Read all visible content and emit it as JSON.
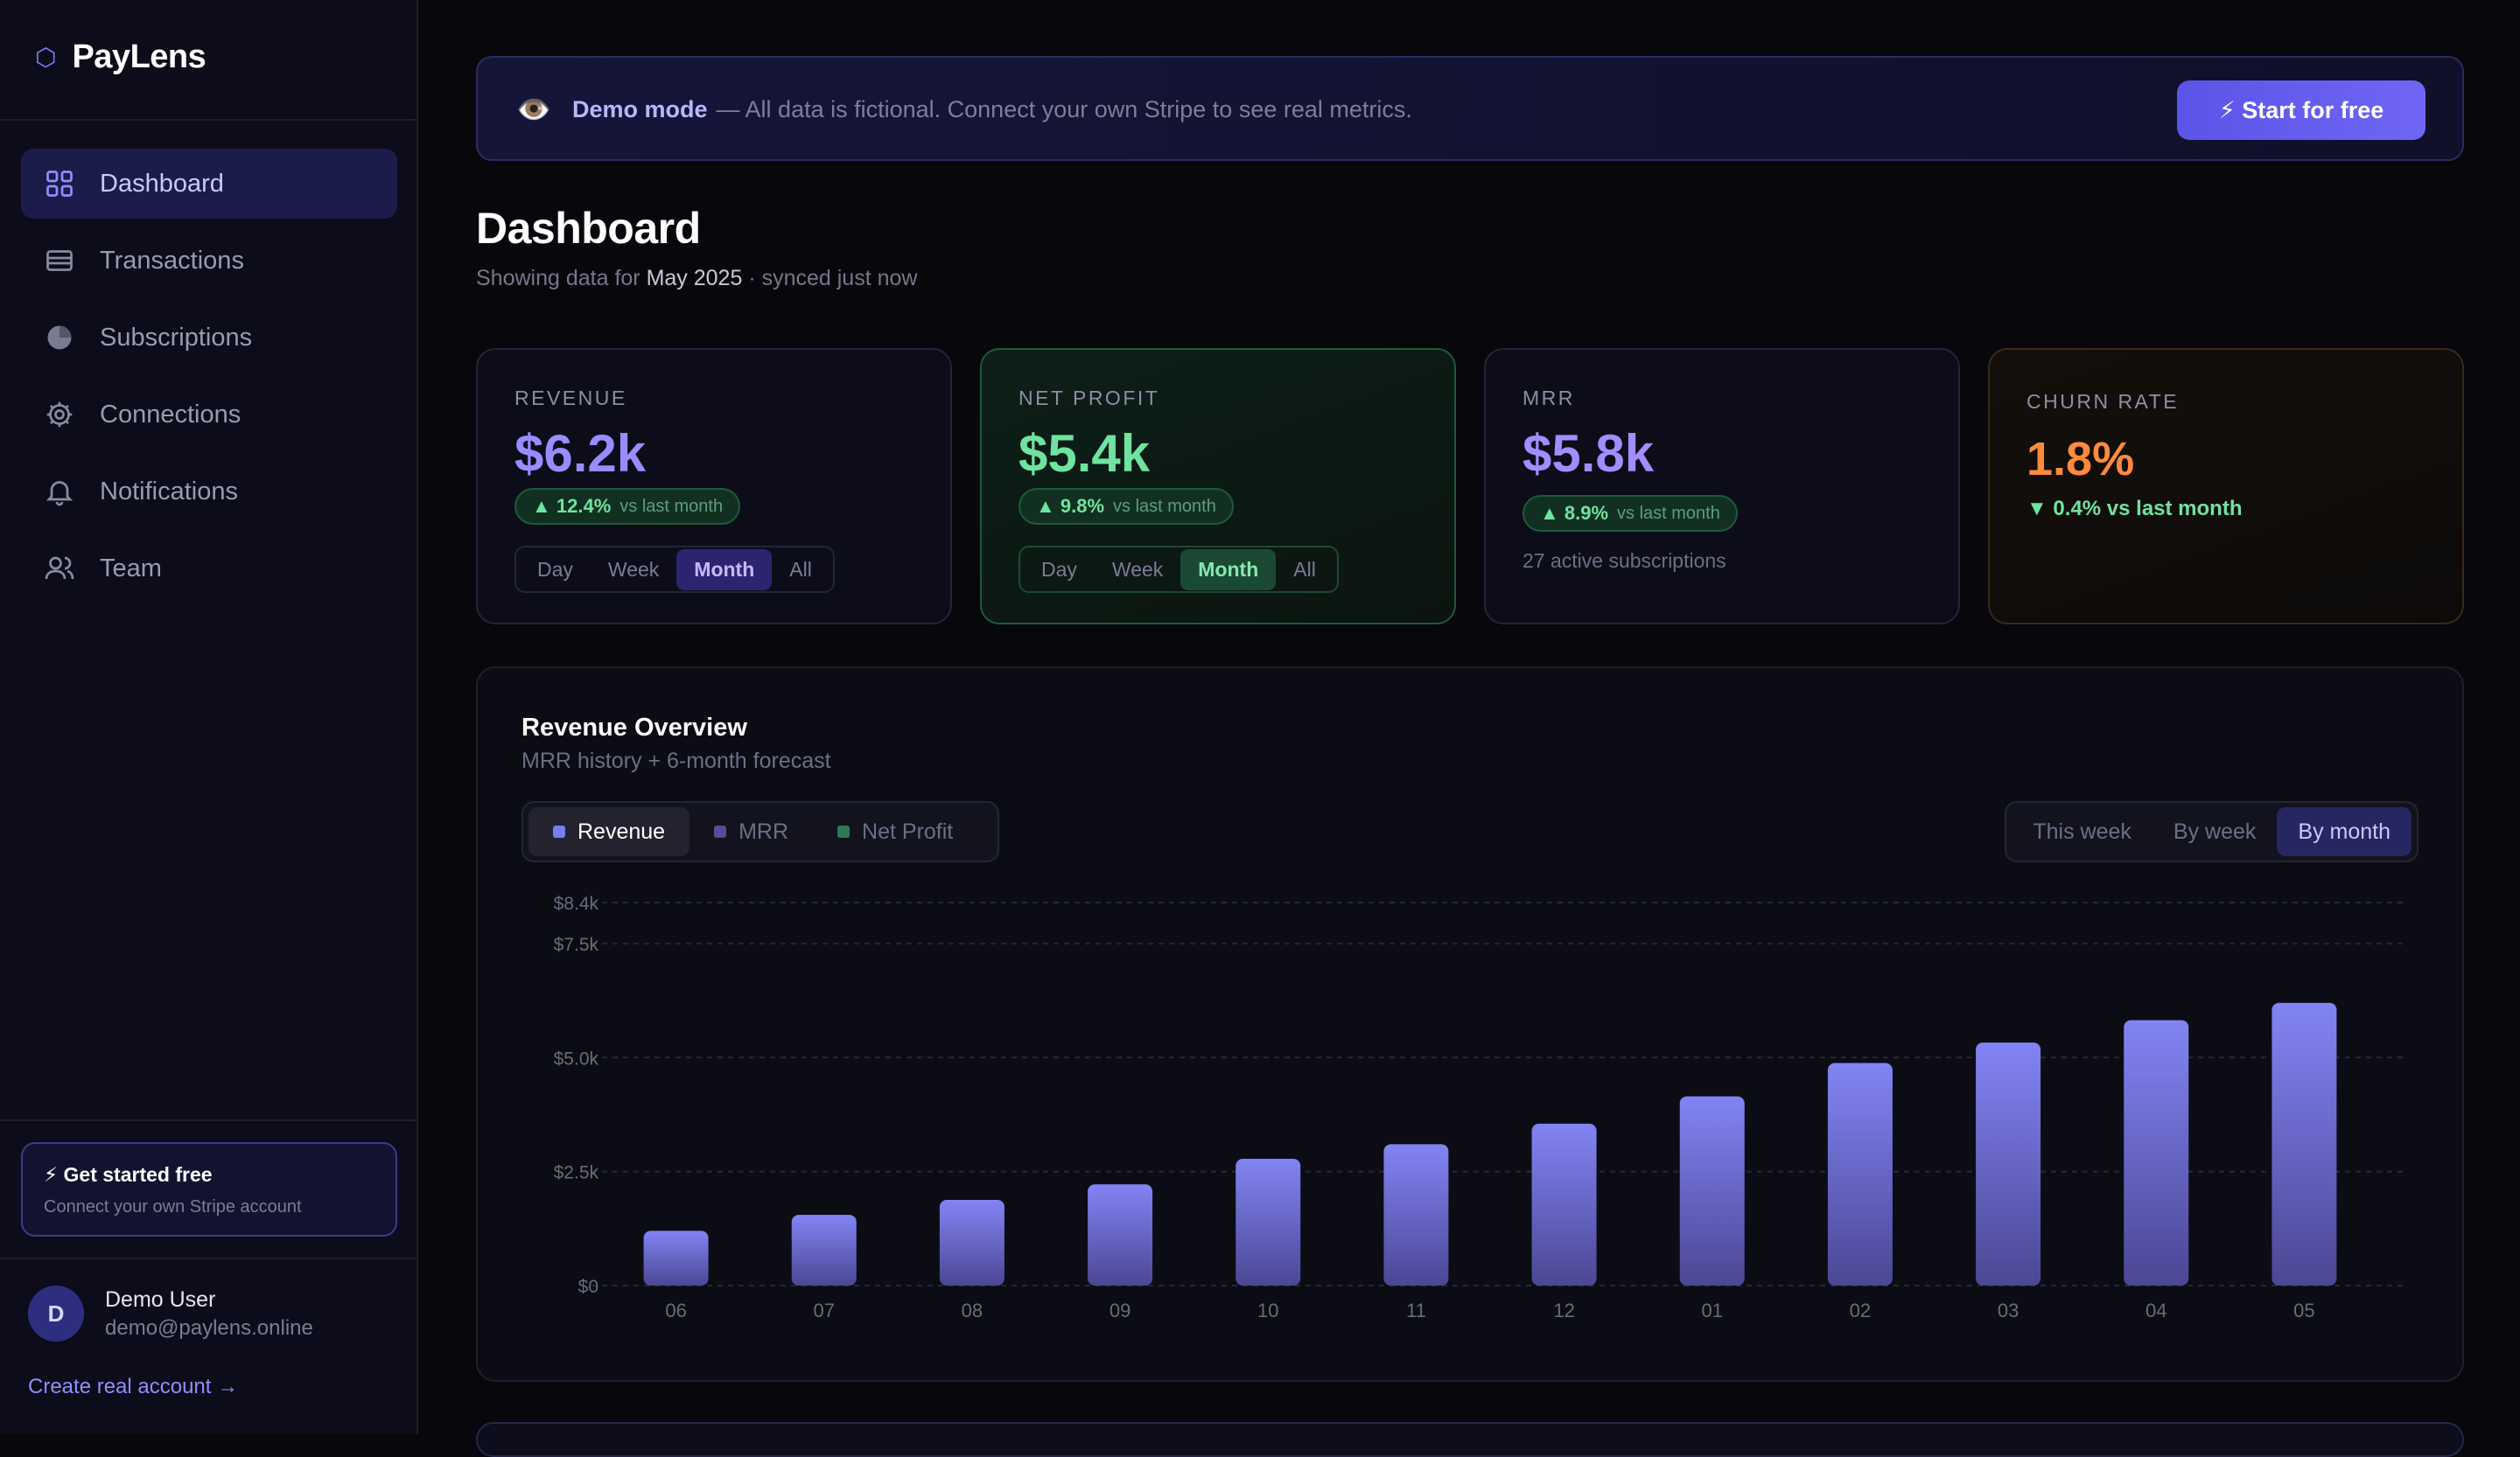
{
  "app": {
    "name": "PayLens",
    "logo_glyph": "⬡"
  },
  "sidebar": {
    "items": [
      {
        "label": "Dashboard",
        "icon": "grid-icon",
        "active": true
      },
      {
        "label": "Transactions",
        "icon": "card-icon",
        "active": false
      },
      {
        "label": "Subscriptions",
        "icon": "pie-icon",
        "active": false
      },
      {
        "label": "Connections",
        "icon": "gear-icon",
        "active": false
      },
      {
        "label": "Notifications",
        "icon": "bell-icon",
        "active": false
      },
      {
        "label": "Team",
        "icon": "users-icon",
        "active": false
      }
    ],
    "promo": {
      "title": "⚡ Get started free",
      "subtitle": "Connect your own Stripe account"
    },
    "user": {
      "initial": "D",
      "name": "Demo User",
      "email": "demo@paylens.online"
    },
    "create_link": "Create real account →"
  },
  "banner": {
    "icon": "👁️",
    "strong": "Demo mode",
    "text": "— All data is fictional. Connect your own Stripe to see real metrics.",
    "button": "⚡ Start for free"
  },
  "page": {
    "title": "Dashboard",
    "sub_prefix": "Showing data for",
    "sub_period": "May 2025",
    "sub_suffix": "· synced just now"
  },
  "kpis": {
    "revenue": {
      "label": "REVENUE",
      "value": "$6.2k",
      "delta": "▲ 12.4%",
      "vs": "vs last month",
      "periods": [
        "Day",
        "Week",
        "Month",
        "All"
      ],
      "selected": "Month",
      "color": "#9a8cff"
    },
    "net_profit": {
      "label": "NET PROFIT",
      "value": "$5.4k",
      "delta": "▲ 9.8%",
      "vs": "vs last month",
      "periods": [
        "Day",
        "Week",
        "Month",
        "All"
      ],
      "selected": "Month",
      "color": "#6fe3a0"
    },
    "mrr": {
      "label": "MRR",
      "value": "$5.8k",
      "delta": "▲ 8.9%",
      "vs": "vs last month",
      "note": "27 active subscriptions",
      "color": "#a38cff"
    },
    "churn": {
      "label": "CHURN RATE",
      "value": "1.8%",
      "delta": "▼ 0.4% vs last month",
      "color": "#ff8a3d",
      "delta_color": "#6fe3a0"
    }
  },
  "chart_panel": {
    "title": "Revenue Overview",
    "subtitle": "MRR history + 6-month forecast",
    "legend": [
      {
        "label": "Revenue",
        "color": "#7b7cf0",
        "active": true
      },
      {
        "label": "MRR",
        "color": "#5a4a9a",
        "active": false
      },
      {
        "label": "Net Profit",
        "color": "#2f7a52",
        "active": false
      }
    ],
    "periods": [
      "This week",
      "By week",
      "By month"
    ],
    "selected_period": "By month"
  },
  "chart_data": {
    "type": "bar",
    "categories": [
      "06",
      "07",
      "08",
      "09",
      "10",
      "11",
      "12",
      "01",
      "02",
      "03",
      "04",
      "05"
    ],
    "values": [
      1200,
      1550,
      1880,
      2220,
      2780,
      3100,
      3550,
      4150,
      4880,
      5330,
      5820,
      6200
    ],
    "y_ticks": [
      0,
      2500,
      5000,
      7500,
      8400
    ],
    "y_tick_labels": [
      "$0",
      "$2.5k",
      "$5.0k",
      "$7.5k",
      "$8.4k"
    ],
    "ylim": [
      0,
      8400
    ],
    "title": "Revenue Overview",
    "xlabel": "",
    "ylabel": "",
    "grid": true,
    "bar_color_top": "#8284f4",
    "bar_color_bottom": "#4b4794"
  }
}
